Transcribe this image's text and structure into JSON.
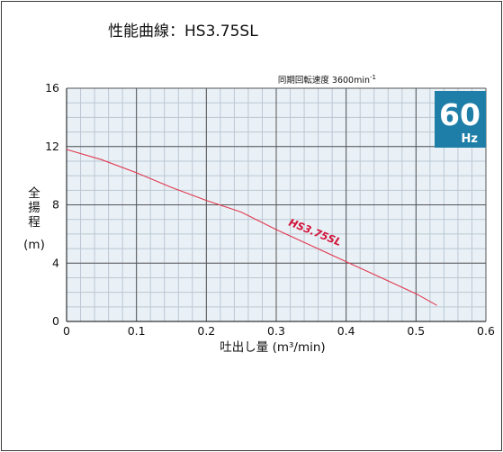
{
  "title": "性能曲線：HS3.75SL",
  "speed_label": "同期回転速度 3600min",
  "speed_superscript": "-1",
  "frequency_badge": {
    "value": "60",
    "unit": "Hz",
    "color": "#1f7ea8"
  },
  "colors": {
    "curve": "#e2374d",
    "grid_minor": "#bcc7d2",
    "grid_major": "#555555",
    "plot_bg": "#e9f1f7"
  },
  "chart_data": {
    "type": "line",
    "title": "性能曲線：HS3.75SL",
    "xlabel": "吐出し量 (m³/min)",
    "ylabel": "全揚程 (m)",
    "ylabel_chars": [
      "全",
      "揚",
      "程"
    ],
    "ylabel_unit": "(m)",
    "xlim": [
      0,
      0.6
    ],
    "ylim": [
      0,
      16
    ],
    "x_ticks": [
      "0",
      "0.1",
      "0.2",
      "0.3",
      "0.4",
      "0.5",
      "0.6"
    ],
    "x_tick_values": [
      0,
      0.1,
      0.2,
      0.3,
      0.4,
      0.5,
      0.6
    ],
    "y_ticks": [
      "0",
      "4",
      "8",
      "12",
      "16"
    ],
    "y_tick_values": [
      0,
      4,
      8,
      12,
      16
    ],
    "grid": true,
    "series": [
      {
        "name": "HS3.75SL",
        "x": [
          0,
          0.05,
          0.1,
          0.15,
          0.2,
          0.25,
          0.3,
          0.35,
          0.4,
          0.45,
          0.5,
          0.53
        ],
        "y": [
          11.8,
          11.1,
          10.2,
          9.2,
          8.3,
          7.5,
          6.3,
          5.2,
          4.1,
          3.0,
          1.9,
          1.1
        ]
      }
    ]
  }
}
